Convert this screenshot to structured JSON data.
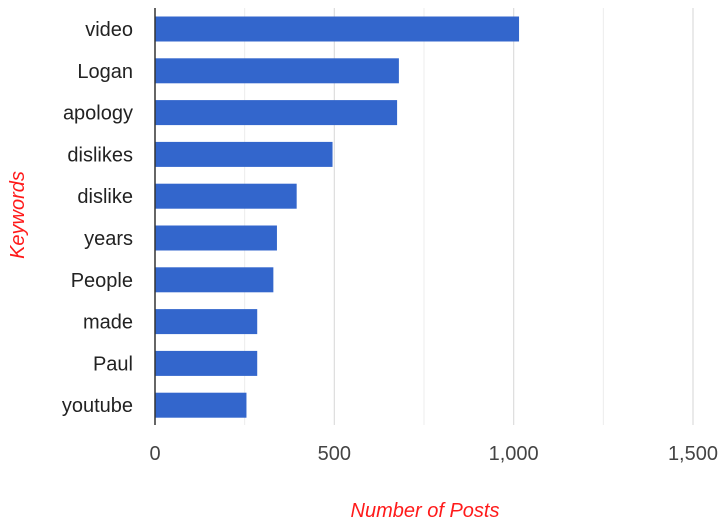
{
  "chart_data": {
    "type": "bar",
    "orientation": "horizontal",
    "categories": [
      "video",
      "Logan",
      "apology",
      "dislikes",
      "dislike",
      "years",
      "People",
      "made",
      "Paul",
      "youtube"
    ],
    "values": [
      1015,
      680,
      675,
      495,
      395,
      340,
      330,
      285,
      285,
      255
    ],
    "xlabel": "Number of Posts",
    "ylabel": "Keywords",
    "xlim": [
      0,
      1500
    ],
    "xticks": [
      0,
      500,
      1000,
      1500
    ],
    "xtick_labels": [
      "0",
      "500",
      "1,000",
      "1,500"
    ],
    "grid": true,
    "legend": "none",
    "colors": {
      "bar": "#3366cc",
      "axis_title": "#ff1a1a",
      "gridline": "#dddddd",
      "axis_line": "#333333"
    }
  }
}
